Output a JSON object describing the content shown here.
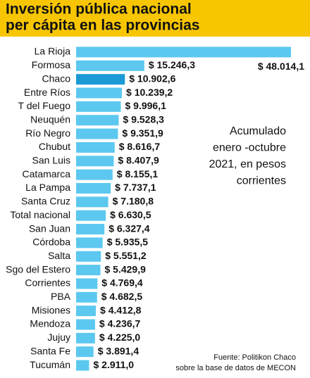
{
  "chart_data": {
    "type": "bar",
    "orientation": "horizontal",
    "title": [
      "Inversión pública nacional",
      "per cápita en las provincias"
    ],
    "categories": [
      "La Rioja",
      "Formosa",
      "Chaco",
      "Entre Ríos",
      "T del Fuego",
      "Neuquén",
      "Río Negro",
      "Chubut",
      "San Luis",
      "Catamarca",
      "La Pampa",
      "Santa Cruz",
      "Total nacional",
      "San Juan",
      "Córdoba",
      "Salta",
      "Sgo del Estero",
      "Corrientes",
      "PBA",
      "Misiones",
      "Mendoza",
      "Jujuy",
      "Santa Fe",
      "Tucumán"
    ],
    "values": [
      48014.1,
      15246.3,
      10902.6,
      10239.2,
      9996.1,
      9528.3,
      9351.9,
      8616.7,
      8407.9,
      8155.1,
      7737.1,
      7180.8,
      6630.5,
      6327.4,
      5935.5,
      5551.2,
      5429.9,
      4769.4,
      4682.5,
      4412.8,
      4236.7,
      4225.0,
      3891.4,
      2911.0
    ],
    "value_labels": [
      "$ 48.014,1",
      "$ 15.246,3",
      "$ 10.902,6",
      "$ 10.239,2",
      "$ 9.996,1",
      "$ 9.528,3",
      "$ 9.351,9",
      "$ 8.616,7",
      "$ 8.407,9",
      "$ 8.155,1",
      "$ 7.737,1",
      "$ 7.180,8",
      "$ 6.630,5",
      "$ 6.327,4",
      "$ 5.935,5",
      "$ 5.551,2",
      "$ 5.429,9",
      "$ 4.769,4",
      "$ 4.682,5",
      "$ 4.412,8",
      "$ 4.236,7",
      "$ 4.225,0",
      "$ 3.891,4",
      "$ 2.911,0"
    ],
    "colors": [
      "#5cc8f0",
      "#5cc8f0",
      "#1b9ad6",
      "#5cc8f0",
      "#5cc8f0",
      "#5cc8f0",
      "#5cc8f0",
      "#5cc8f0",
      "#5cc8f0",
      "#5cc8f0",
      "#5cc8f0",
      "#5cc8f0",
      "#5cc8f0",
      "#5cc8f0",
      "#5cc8f0",
      "#5cc8f0",
      "#5cc8f0",
      "#5cc8f0",
      "#5cc8f0",
      "#5cc8f0",
      "#5cc8f0",
      "#5cc8f0",
      "#5cc8f0",
      "#5cc8f0"
    ],
    "annotation": [
      "Acumulado",
      "enero -octubre",
      "2021, en pesos",
      "corrientes"
    ],
    "source": [
      "Fuente: Politikon Chaco",
      "sobre la base de datos de MECON"
    ]
  }
}
